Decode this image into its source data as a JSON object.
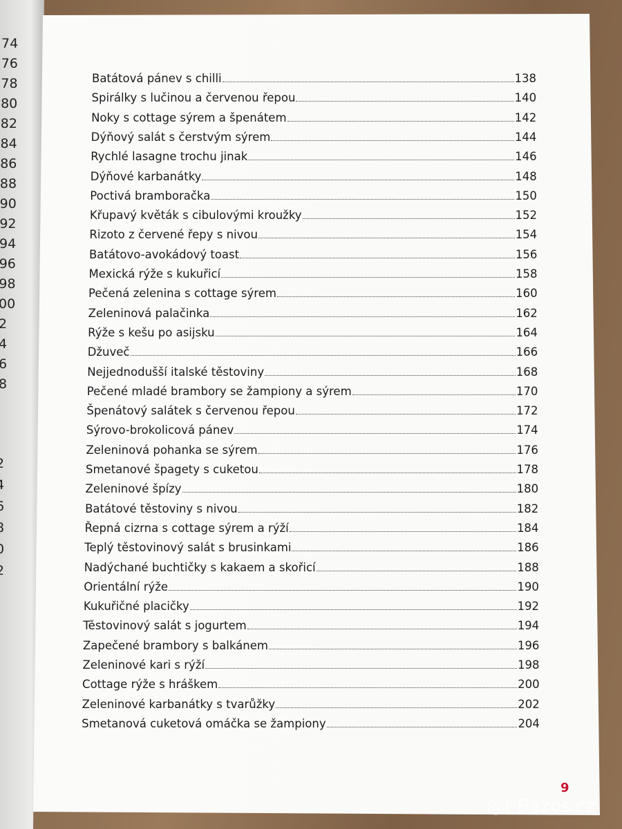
{
  "left_page": {
    "fragments": [
      "74",
      "76",
      "78",
      "80",
      "82",
      "84",
      "86",
      "88",
      "90",
      "92",
      "94",
      "96",
      "98",
      "00",
      "2",
      "4",
      "6",
      "8",
      "2",
      "4",
      "6",
      "8",
      "0",
      "2"
    ]
  },
  "toc": {
    "entries": [
      {
        "title": "Batátová pánev s chilli",
        "page": 138
      },
      {
        "title": "Spirálky s lučinou a červenou řepou",
        "page": 140
      },
      {
        "title": "Noky s cottage sýrem a špenátem",
        "page": 142
      },
      {
        "title": "Dýňový salát s čerstvým sýrem",
        "page": 144
      },
      {
        "title": "Rychlé lasagne trochu jinak",
        "page": 146
      },
      {
        "title": "Dýňové karbanátky",
        "page": 148
      },
      {
        "title": "Poctivá bramboračka",
        "page": 150
      },
      {
        "title": "Křupavý květák s cibulovými kroužky",
        "page": 152
      },
      {
        "title": "Rizoto z červené řepy s nivou",
        "page": 154
      },
      {
        "title": "Batátovo-avokádový toast",
        "page": 156
      },
      {
        "title": "Mexická rýže s kukuřicí",
        "page": 158
      },
      {
        "title": "Pečená zelenina s cottage sýrem",
        "page": 160
      },
      {
        "title": "Zeleninová palačinka",
        "page": 162
      },
      {
        "title": "Rýže s kešu po asijsku",
        "page": 164
      },
      {
        "title": "Džuveč",
        "page": 166
      },
      {
        "title": "Nejjednodušší italské těstoviny",
        "page": 168
      },
      {
        "title": "Pečené mladé brambory se žampiony a sýrem",
        "page": 170
      },
      {
        "title": "Špenátový salátek s červenou řepou",
        "page": 172
      },
      {
        "title": "Sýrovo-brokolicová pánev",
        "page": 174
      },
      {
        "title": "Zeleninová pohanka se sýrem",
        "page": 176
      },
      {
        "title": "Smetanové špagety s cuketou",
        "page": 178
      },
      {
        "title": "Zeleninové špízy",
        "page": 180
      },
      {
        "title": "Batátové těstoviny s nivou",
        "page": 182
      },
      {
        "title": "Řepná cizrna s cottage sýrem a rýží",
        "page": 184
      },
      {
        "title": "Teplý těstovinový salát s brusinkami",
        "page": 186
      },
      {
        "title": "Nadýchané buchtičky s kakaem a skořicí",
        "page": 188
      },
      {
        "title": "Orientální rýže",
        "page": 190
      },
      {
        "title": "Kukuřičné placičky",
        "page": 192
      },
      {
        "title": "Těstovinový salát s jogurtem",
        "page": 194
      },
      {
        "title": "Zapečené brambory s balkánem",
        "page": 196
      },
      {
        "title": "Zeleninové kari s rýží",
        "page": 198
      },
      {
        "title": "Cottage rýže s hráškem",
        "page": 200
      },
      {
        "title": "Zeleninové karbanátky s tvarůžky",
        "page": 202
      },
      {
        "title": "Smetanová cuketová omáčka se žampiony",
        "page": 204
      }
    ]
  },
  "footer": {
    "page_number": "9"
  },
  "watermark": {
    "text": "@( Bazos.cz"
  }
}
